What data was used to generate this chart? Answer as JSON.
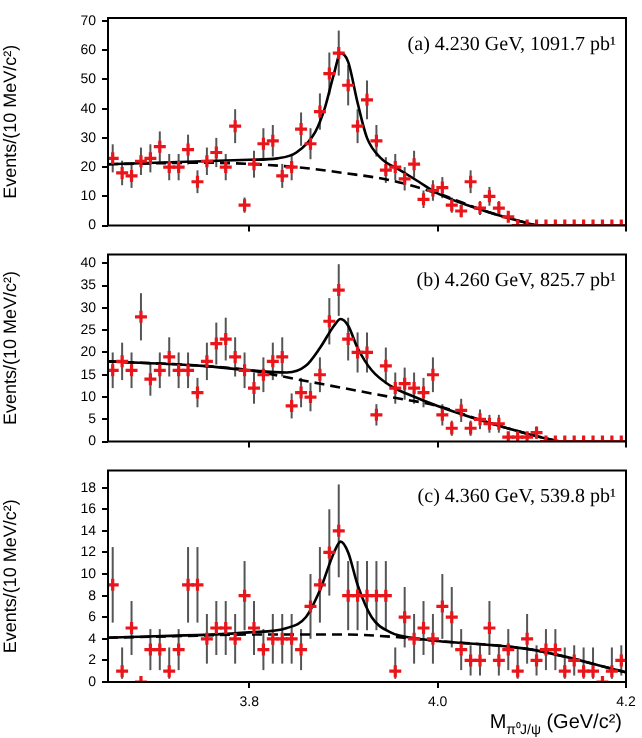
{
  "chart_data": [
    {
      "type": "scatter",
      "annotations": [
        "(a) 4.230 GeV, 1091.7 pb¹"
      ],
      "ylabel": "Events/(10 MeV/c²)",
      "xlim": [
        3.65,
        4.2
      ],
      "xticks": [
        3.8,
        4.0,
        4.2
      ],
      "ylim": [
        0,
        71
      ],
      "yticks": [
        0,
        10,
        20,
        30,
        40,
        50,
        60,
        70
      ],
      "tick_labels": "y",
      "marker": "cross",
      "x": [
        3.655,
        3.665,
        3.675,
        3.685,
        3.695,
        3.705,
        3.715,
        3.725,
        3.735,
        3.745,
        3.755,
        3.765,
        3.775,
        3.785,
        3.795,
        3.805,
        3.815,
        3.825,
        3.835,
        3.845,
        3.855,
        3.865,
        3.875,
        3.885,
        3.895,
        3.905,
        3.915,
        3.925,
        3.935,
        3.945,
        3.955,
        3.965,
        3.975,
        3.985,
        3.995,
        4.005,
        4.015,
        4.025,
        4.035,
        4.045,
        4.055,
        4.065,
        4.075,
        4.085,
        4.095,
        4.105,
        4.115,
        4.125,
        4.135,
        4.145,
        4.155,
        4.165,
        4.175,
        4.185,
        4.195
      ],
      "series": [
        {
          "color": "#e8161b",
          "values": [
            23,
            18,
            17,
            22,
            23,
            27,
            20,
            20,
            26,
            15,
            22,
            25,
            20,
            34,
            7,
            21,
            28,
            29,
            17,
            20,
            33,
            28,
            39,
            52,
            59,
            48,
            34,
            43,
            29,
            19,
            20,
            16,
            21,
            9,
            12,
            13,
            7,
            5,
            15,
            6,
            10,
            6,
            3,
            0,
            0,
            0,
            0,
            0,
            0,
            0,
            0,
            0,
            0,
            0,
            0
          ],
          "errors": [
            4.8,
            4.2,
            4.1,
            4.7,
            4.8,
            5.2,
            4.5,
            4.5,
            5.1,
            3.9,
            4.7,
            5,
            4.5,
            5.8,
            2.6,
            4.6,
            5.3,
            5.4,
            4.1,
            4.5,
            5.7,
            5.3,
            6.2,
            7.2,
            7.7,
            6.9,
            5.8,
            6.6,
            5.4,
            4.4,
            4.5,
            4,
            4.6,
            3,
            3.5,
            3.6,
            2.6,
            2.2,
            3.9,
            2.4,
            3.2,
            2.4,
            1.7,
            null,
            null,
            null,
            null,
            null,
            null,
            null,
            null,
            null,
            null,
            null,
            null
          ]
        },
        {
          "type": "line",
          "color": "#000000",
          "marker": "none",
          "x": [
            3.65,
            3.75,
            3.8,
            3.83,
            3.85,
            3.87,
            3.88,
            3.89,
            3.897,
            3.905,
            3.915,
            3.925,
            3.94,
            3.96,
            3.98,
            4.0,
            4.05,
            4.105
          ],
          "values": [
            21,
            22,
            22.5,
            23,
            25,
            32,
            40,
            52,
            59,
            56,
            42,
            30,
            23,
            19,
            15,
            11,
            5,
            0
          ]
        },
        {
          "type": "line",
          "color": "#000000",
          "marker": "none",
          "line_style": "dashed",
          "x": [
            3.65,
            3.75,
            3.85,
            3.9,
            3.95,
            4.0,
            4.05,
            4.105
          ],
          "values": [
            21,
            21.5,
            20,
            18,
            15.5,
            11,
            5,
            0
          ]
        }
      ]
    },
    {
      "type": "scatter",
      "annotations": [
        "(b) 4.260 GeV, 825.7 pb¹"
      ],
      "ylabel": "Events/(10 MeV/c²)",
      "xlim": [
        3.65,
        4.2
      ],
      "xticks": [
        3.8,
        4.0,
        4.2
      ],
      "ylim": [
        0,
        42
      ],
      "yticks": [
        0,
        5,
        10,
        15,
        20,
        25,
        30,
        35,
        40
      ],
      "tick_labels": "y",
      "marker": "cross",
      "x": [
        3.655,
        3.665,
        3.675,
        3.685,
        3.695,
        3.705,
        3.715,
        3.725,
        3.735,
        3.745,
        3.755,
        3.765,
        3.775,
        3.785,
        3.795,
        3.805,
        3.815,
        3.825,
        3.835,
        3.845,
        3.855,
        3.865,
        3.875,
        3.885,
        3.895,
        3.905,
        3.915,
        3.925,
        3.935,
        3.945,
        3.955,
        3.965,
        3.975,
        3.985,
        3.995,
        4.005,
        4.015,
        4.025,
        4.035,
        4.045,
        4.055,
        4.065,
        4.075,
        4.085,
        4.095,
        4.105,
        4.115,
        4.125,
        4.135,
        4.145,
        4.155,
        4.165,
        4.175,
        4.185,
        4.195
      ],
      "series": [
        {
          "color": "#e8161b",
          "values": [
            16,
            18,
            16,
            28,
            14,
            16,
            19,
            16,
            16,
            11,
            18,
            22,
            23,
            19,
            16,
            12,
            15,
            18,
            19,
            8,
            11,
            10,
            15,
            27,
            34,
            23,
            20,
            20,
            6,
            17,
            12,
            13,
            12,
            11,
            15,
            6,
            3,
            7,
            3,
            5,
            4,
            4,
            1,
            1,
            1,
            2,
            0,
            0,
            0,
            0,
            0,
            0,
            0,
            0,
            0
          ],
          "errors": [
            4,
            4.2,
            4,
            5.3,
            3.7,
            4,
            4.4,
            4,
            4,
            3.3,
            4.2,
            4.7,
            4.8,
            4.4,
            4,
            3.5,
            3.9,
            4.2,
            4.4,
            2.8,
            3.3,
            3.2,
            3.9,
            5.2,
            5.8,
            4.8,
            4.5,
            4.5,
            2.4,
            4.1,
            3.5,
            3.6,
            3.5,
            3.3,
            3.9,
            2.4,
            1.7,
            2.6,
            1.7,
            2.2,
            2,
            2,
            1,
            1,
            1,
            1.4,
            null,
            null,
            null,
            null,
            null,
            null,
            null,
            null,
            null
          ]
        },
        {
          "type": "line",
          "color": "#000000",
          "marker": "none",
          "x": [
            3.65,
            3.75,
            3.8,
            3.84,
            3.86,
            3.875,
            3.89,
            3.897,
            3.905,
            3.915,
            3.93,
            3.95,
            3.97,
            4.0,
            4.05,
            4.1,
            4.13
          ],
          "values": [
            18,
            17,
            16,
            15.5,
            17,
            21,
            26,
            27.5,
            26,
            21,
            16,
            12.5,
            10.5,
            8,
            4.5,
            1.5,
            0
          ]
        },
        {
          "type": "line",
          "color": "#000000",
          "marker": "none",
          "line_style": "dashed",
          "x": [
            3.65,
            3.75,
            3.8,
            3.85,
            3.9,
            3.95,
            4.0,
            4.05,
            4.1,
            4.13
          ],
          "values": [
            18,
            17,
            16,
            14,
            12,
            10,
            8,
            4.5,
            1.5,
            0
          ]
        }
      ]
    },
    {
      "type": "scatter",
      "annotations": [
        "(c) 4.360 GeV, 539.8 pb¹"
      ],
      "ylabel": "Events/(10 MeV/c²)",
      "xlabel": "M$_{π⁰J/ψ}$ (GeV/c²)",
      "xlim": [
        3.65,
        4.2
      ],
      "xticks": [
        3.8,
        {
          "value": 4,
          "label": "4.0"
        },
        4.2
      ],
      "ylim": [
        0,
        19.6
      ],
      "yticks": [
        0,
        2,
        4,
        6,
        8,
        10,
        12,
        14,
        16,
        18
      ],
      "marker": "cross",
      "x": [
        3.655,
        3.665,
        3.675,
        3.685,
        3.695,
        3.705,
        3.715,
        3.725,
        3.735,
        3.745,
        3.755,
        3.765,
        3.775,
        3.785,
        3.795,
        3.805,
        3.815,
        3.825,
        3.835,
        3.845,
        3.855,
        3.865,
        3.875,
        3.885,
        3.895,
        3.905,
        3.915,
        3.925,
        3.935,
        3.945,
        3.955,
        3.965,
        3.975,
        3.985,
        3.995,
        4.005,
        4.015,
        4.025,
        4.035,
        4.045,
        4.055,
        4.065,
        4.075,
        4.085,
        4.095,
        4.105,
        4.115,
        4.125,
        4.135,
        4.145,
        4.155,
        4.165,
        4.175,
        4.185,
        4.195
      ],
      "series": [
        {
          "color": "#e8161b",
          "values": [
            9,
            1,
            5,
            0,
            3,
            3,
            1,
            3,
            9,
            9,
            4,
            5,
            5,
            4,
            8,
            5,
            3,
            4,
            4,
            4,
            3,
            7,
            9,
            12,
            14,
            8,
            8,
            8,
            8,
            8,
            1,
            6,
            4,
            5,
            4,
            7,
            6,
            3,
            2,
            2,
            5,
            2,
            3,
            1,
            4,
            2,
            3,
            3,
            1,
            2,
            1,
            1,
            0,
            1,
            2
          ],
          "errors": [
            3.5,
            [
              0.3,
              3.2
            ],
            2.5,
            null,
            1.9,
            1.9,
            [
              0.3,
              3.2
            ],
            1.9,
            3.5,
            3.5,
            2.3,
            2.5,
            2.5,
            2.3,
            3.2,
            2.5,
            1.9,
            2.3,
            2.3,
            2.3,
            1.9,
            3,
            3.5,
            4,
            4.3,
            3.2,
            3.2,
            3.2,
            3.2,
            3.2,
            [
              0.3,
              3.2
            ],
            2.8,
            2.3,
            2.5,
            2.3,
            3,
            2.8,
            1.9,
            1.4,
            1.4,
            2.5,
            1.4,
            1.9,
            [
              0.3,
              3.2
            ],
            2.3,
            1.4,
            1.9,
            1.9,
            [
              0.3,
              3.2
            ],
            1.4,
            [
              0.3,
              3.2
            ],
            [
              0.3,
              3.2
            ],
            null,
            [
              0.3,
              3.2
            ],
            1.4
          ]
        },
        {
          "type": "line",
          "color": "#000000",
          "marker": "none",
          "x": [
            3.65,
            3.8,
            3.84,
            3.86,
            3.875,
            3.89,
            3.897,
            3.905,
            3.915,
            3.93,
            3.95,
            3.98,
            4.0,
            4.1,
            4.2
          ],
          "values": [
            4.1,
            4.6,
            5,
            6,
            8.5,
            12,
            13,
            12,
            9,
            6,
            4.6,
            4,
            3.8,
            3,
            0.9
          ]
        },
        {
          "type": "line",
          "color": "#000000",
          "marker": "none",
          "line_style": "dashed",
          "x": [
            3.65,
            3.75,
            3.8,
            3.9,
            3.95,
            4.0,
            4.1,
            4.2
          ],
          "values": [
            4.1,
            4.3,
            4.4,
            4.4,
            4.2,
            3.8,
            3,
            0.9
          ]
        }
      ]
    }
  ]
}
